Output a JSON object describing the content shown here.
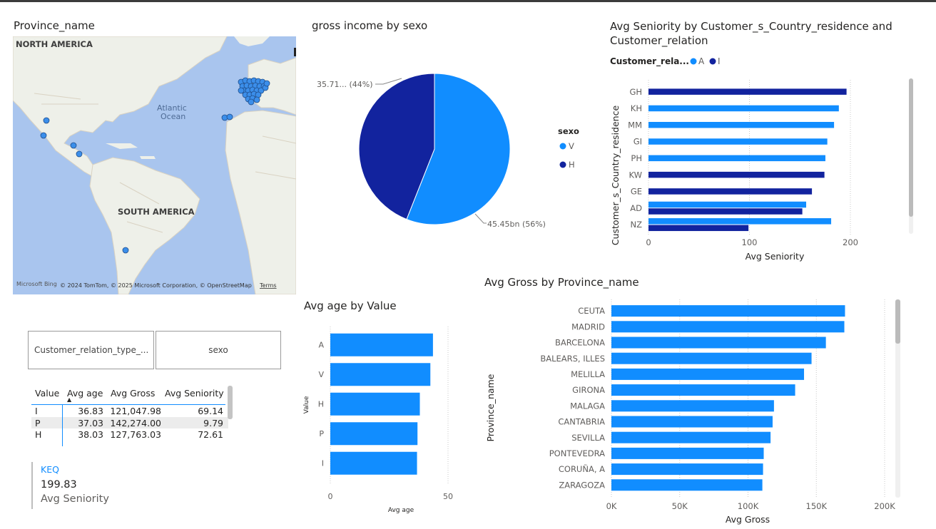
{
  "map": {
    "title": "Province_name",
    "labels": {
      "north_america": "NORTH AMERICA",
      "south_america": "SOUTH AMERICA",
      "ocean1": "Atlantic",
      "ocean2": "Ocean"
    },
    "attribution": "Microsoft Bing",
    "copyright": "© 2024 TomTom, © 2025 Microsoft Corporation, © OpenStreetMap",
    "terms": "Terms",
    "point_color": "#3b8eea"
  },
  "pie": {
    "title": "gross income by sexo",
    "legend_title": "sexo",
    "label_v": "45.45bn (56%)",
    "label_h": "35.71... (44%)"
  },
  "slicers": {
    "left": "Customer_relation_type_...",
    "right": "sexo"
  },
  "table": {
    "headers": [
      "Value",
      "Avg age",
      "Avg Gross",
      "Avg Seniority"
    ],
    "rows": [
      [
        "I",
        "36.83",
        "121,047.98",
        "69.14"
      ],
      [
        "P",
        "37.03",
        "142,274.00",
        "9.79"
      ],
      [
        "H",
        "38.03",
        "127,763.03",
        "72.61"
      ]
    ]
  },
  "kpi": {
    "label": "KEQ",
    "value": "199.83",
    "caption": "Avg Seniority"
  },
  "colors": {
    "light": "#118dff",
    "dark": "#12239e",
    "grid": "#c8c8c8",
    "axis_text": "#605e5c"
  },
  "chart_data": [
    {
      "type": "pie",
      "title": "gross income by sexo",
      "legend_title": "sexo",
      "slices": [
        {
          "name": "V",
          "value": 45.45,
          "percent": 56,
          "color": "#118dff"
        },
        {
          "name": "H",
          "value": 35.71,
          "percent": 44,
          "color": "#12239e"
        }
      ],
      "labels": [
        "45.45bn (56%)",
        "35.71... (44%)"
      ]
    },
    {
      "type": "bar",
      "orientation": "horizontal",
      "title": "Avg Seniority by Customer_s_Country_residence and Customer_relation",
      "legend_title": "Customer_rela...",
      "xlabel": "Avg Seniority",
      "ylabel": "Customer_s_Country_residence",
      "xlim": [
        0,
        210
      ],
      "xticks": [
        "0",
        "100",
        "200"
      ],
      "categories": [
        "GH",
        "KH",
        "MM",
        "GI",
        "PH",
        "KW",
        "GE",
        "AD",
        "NZ"
      ],
      "series": [
        {
          "name": "A",
          "color": "#118dff",
          "values": [
            null,
            198,
            193,
            186,
            184,
            null,
            null,
            164,
            190
          ]
        },
        {
          "name": "I",
          "color": "#12239e",
          "values": [
            206,
            null,
            null,
            null,
            null,
            183,
            170,
            160,
            104
          ]
        }
      ]
    },
    {
      "type": "bar",
      "orientation": "horizontal",
      "title": "Avg age by Value",
      "xlabel": "Avg age",
      "ylabel": "Value",
      "xlim": [
        0,
        50
      ],
      "xticks": [
        "0",
        "50"
      ],
      "categories": [
        "A",
        "V",
        "H",
        "P",
        "I"
      ],
      "values": [
        43.6,
        42.5,
        38.03,
        37.03,
        36.83
      ]
    },
    {
      "type": "bar",
      "orientation": "horizontal",
      "title": "Avg Gross by Province_name",
      "xlabel": "Avg Gross",
      "ylabel": "Province_name",
      "xlim": [
        0,
        200000
      ],
      "xticks": [
        "0K",
        "50K",
        "100K",
        "150K",
        "200K"
      ],
      "categories": [
        "CEUTA",
        "MADRID",
        "BARCELONA",
        "BALEARS, ILLES",
        "MELILLA",
        "GIRONA",
        "MALAGA",
        "CANTABRIA",
        "SEVILLA",
        "PONTEVEDRA",
        "CORUÑA, A",
        "ZARAGOZA"
      ],
      "values": [
        171000,
        170500,
        157000,
        146500,
        141000,
        134500,
        119000,
        118000,
        116500,
        111500,
        111000,
        110500
      ]
    }
  ]
}
